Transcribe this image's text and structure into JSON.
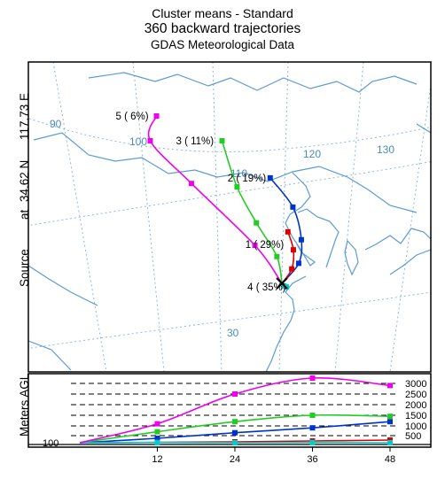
{
  "title": {
    "line1": "Cluster means - Standard",
    "line2": "360 backward trajectories",
    "line3": "GDAS Meteorological Data"
  },
  "source_label": {
    "prefix": "Source",
    "at": "at",
    "lat": "34.62 N",
    "lon": "117.73 E"
  },
  "map": {
    "lon_labels": [
      "90",
      "100",
      "110",
      "120",
      "130"
    ],
    "lat_labels": [
      "30"
    ],
    "colors": {
      "coast": "#5b9bd5",
      "grid": "#8fb8d8",
      "frame": "#000000"
    }
  },
  "chart_data": [
    {
      "type": "line",
      "panel": "map",
      "description_of_axes": "trajectory paths on map (lon/lat estimated)",
      "series": [
        {
          "name": "1 ( 29%)",
          "color": "#dd0000",
          "label_text": "1 ( 29%)",
          "points": [
            [
              117.73,
              34.62
            ],
            [
              118.6,
              35.9
            ],
            [
              118.8,
              37.6
            ],
            [
              118.4,
              39.2
            ]
          ]
        },
        {
          "name": "2 ( 19%)",
          "color": "#0033cc",
          "label_text": "2 ( 19%)",
          "points": [
            [
              117.73,
              34.62
            ],
            [
              119.2,
              36.4
            ],
            [
              119.5,
              38.5
            ],
            [
              118.9,
              41.4
            ],
            [
              117.1,
              44.0
            ]
          ]
        },
        {
          "name": "3 ( 11%)",
          "color": "#22cc22",
          "label_text": "3 ( 11%)",
          "points": [
            [
              117.73,
              34.62
            ],
            [
              117.4,
              37.0
            ],
            [
              115.8,
              40.0
            ],
            [
              114.3,
              43.2
            ],
            [
              113.2,
              47.3
            ]
          ]
        },
        {
          "name": "4 ( 35%)",
          "color": "#00cccc",
          "label_text": "4 ( 35%)",
          "points": [
            [
              117.73,
              34.62
            ],
            [
              117.9,
              34.4
            ],
            [
              118.1,
              34.3
            ]
          ]
        },
        {
          "name": "5 ( 6%)",
          "color": "#ee00ee",
          "label_text": "5 ( 6%)",
          "points": [
            [
              117.73,
              34.62
            ],
            [
              115.6,
              38.0
            ],
            [
              110.5,
              43.5
            ],
            [
              107.2,
              47.3
            ],
            [
              107.8,
              49.5
            ]
          ]
        }
      ]
    },
    {
      "type": "line",
      "panel": "height",
      "ylabel": "Meters AGL",
      "y_ticks": [
        "3000",
        "2500",
        "2000",
        "1500",
        "1000",
        "500"
      ],
      "y_base_label": "100",
      "x_ticks": [
        "12",
        "24",
        "36",
        "48"
      ],
      "xlim": [
        0,
        48
      ],
      "ylim": [
        100,
        3000
      ],
      "series": [
        {
          "name": "1",
          "color": "#dd0000",
          "x": [
            0,
            12,
            24,
            36,
            48
          ],
          "y": [
            100,
            120,
            150,
            200,
            250
          ]
        },
        {
          "name": "2",
          "color": "#0033cc",
          "x": [
            0,
            12,
            24,
            36,
            48
          ],
          "y": [
            100,
            350,
            650,
            900,
            1200
          ]
        },
        {
          "name": "3",
          "color": "#22cc22",
          "x": [
            0,
            12,
            24,
            36,
            48
          ],
          "y": [
            100,
            700,
            1200,
            1500,
            1450
          ]
        },
        {
          "name": "4",
          "color": "#00cccc",
          "x": [
            0,
            12,
            24,
            36,
            48
          ],
          "y": [
            100,
            110,
            100,
            110,
            100
          ]
        },
        {
          "name": "5",
          "color": "#ee00ee",
          "x": [
            0,
            12,
            24,
            36,
            48
          ],
          "y": [
            100,
            1100,
            2500,
            3250,
            2900
          ]
        }
      ]
    }
  ]
}
